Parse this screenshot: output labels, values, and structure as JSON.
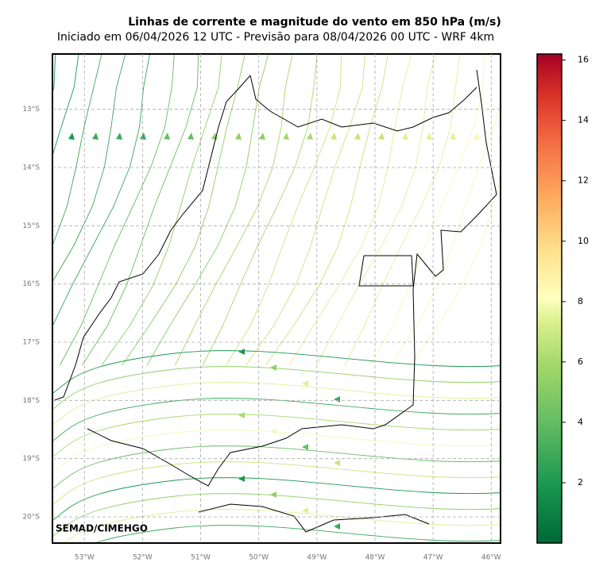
{
  "header": {
    "title": "Linhas de corrente e magnitude do vento em 850 hPa (m/s)",
    "subtitle": "Iniciado em 06/04/2026 12 UTC - Previsão para 08/04/2026 00 UTC - WRF 4km"
  },
  "map": {
    "xlim": [
      -53.55,
      -45.84
    ],
    "ylim": [
      -20.45,
      -12.05
    ],
    "xticks": [
      {
        "value": -53,
        "label": "53°W"
      },
      {
        "value": -52,
        "label": "52°W"
      },
      {
        "value": -51,
        "label": "51°W"
      },
      {
        "value": -50,
        "label": "50°W"
      },
      {
        "value": -49,
        "label": "49°W"
      },
      {
        "value": -48,
        "label": "48°W"
      },
      {
        "value": -47,
        "label": "47°W"
      },
      {
        "value": -46,
        "label": "46°W"
      }
    ],
    "yticks": [
      {
        "value": -13,
        "label": "13°S"
      },
      {
        "value": -14,
        "label": "14°S"
      },
      {
        "value": -15,
        "label": "15°S"
      },
      {
        "value": -16,
        "label": "16°S"
      },
      {
        "value": -17,
        "label": "17°S"
      },
      {
        "value": -18,
        "label": "18°S"
      },
      {
        "value": -19,
        "label": "19°S"
      },
      {
        "value": -20,
        "label": "20°S"
      }
    ],
    "grid": true,
    "credit": "SEMAD/CIMEHGO"
  },
  "colorbar": {
    "lim": [
      0,
      16.2
    ],
    "ticks": [
      2,
      4,
      6,
      8,
      10,
      12,
      14,
      16
    ]
  }
}
